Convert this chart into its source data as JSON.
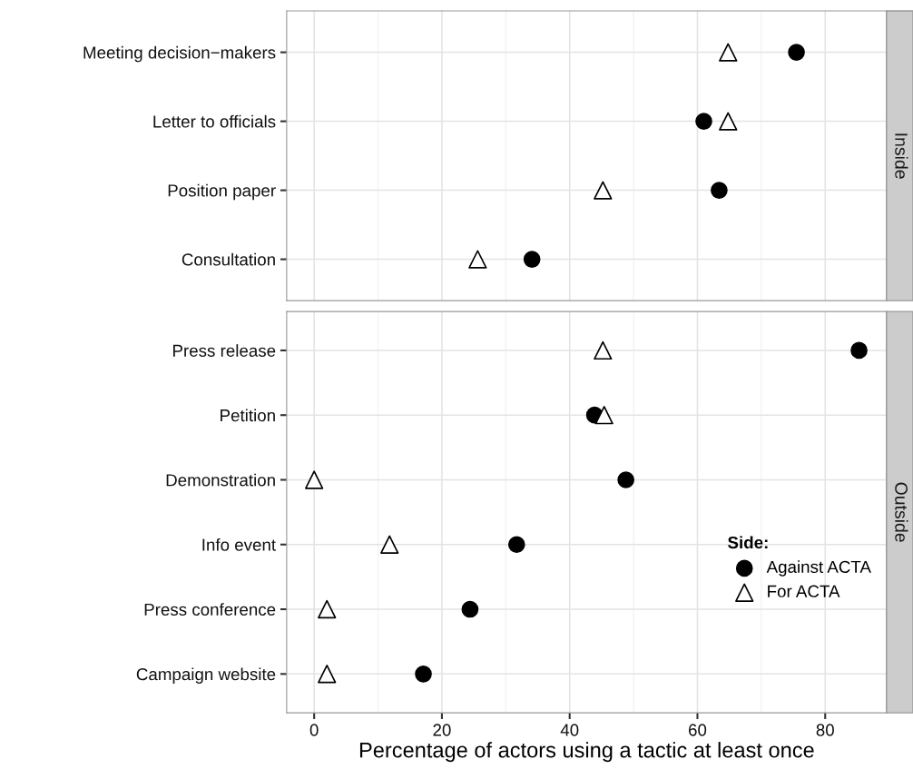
{
  "chart_data": [
    {
      "type": "scatter",
      "title": "Inside",
      "categories": [
        "Meeting decision−makers",
        "Letter to officials",
        "Position paper",
        "Consultation"
      ],
      "orientation": "horizontal",
      "xlim": [
        -4.3,
        89.6
      ],
      "xticks": [
        0,
        20,
        40,
        60,
        80
      ],
      "grid": true,
      "tick_labels": "y",
      "series": [
        {
          "color": "#000000",
          "marker": "circle",
          "values": [
            75.5,
            61.0,
            63.4,
            34.1
          ]
        },
        {
          "color": "#000000",
          "marker": "triangle",
          "values": [
            64.8,
            64.8,
            45.2,
            25.6
          ]
        }
      ]
    },
    {
      "type": "scatter",
      "title": "Outside",
      "xlabel": "Percentage of actors using a tactic at least once",
      "legend_title": "Side:",
      "legend": "right",
      "categories": [
        "Press release",
        "Petition",
        "Demonstration",
        "Info event",
        "Press conference",
        "Campaign website"
      ],
      "orientation": "horizontal",
      "xlim": [
        -4.3,
        89.6
      ],
      "xticks": [
        0,
        20,
        40,
        60,
        80
      ],
      "grid": true,
      "series": [
        {
          "name": "Against ACTA",
          "color": "#000000",
          "marker": "circle",
          "values": [
            85.3,
            43.9,
            48.8,
            31.7,
            24.4,
            17.1
          ]
        },
        {
          "name": "For ACTA",
          "color": "#000000",
          "marker": "triangle",
          "values": [
            45.2,
            45.4,
            0,
            11.8,
            2.0,
            2.0
          ]
        }
      ]
    }
  ]
}
